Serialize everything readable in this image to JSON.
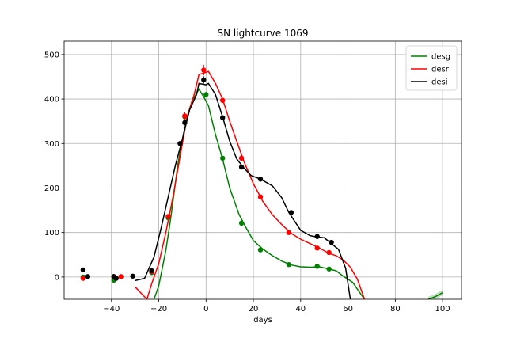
{
  "chart_data": {
    "type": "line",
    "title": "SN lightcurve 1069",
    "xlabel": "days",
    "ylabel": "",
    "xlim": [
      -60,
      108
    ],
    "ylim": [
      -50,
      530
    ],
    "xticks": [
      -40,
      -20,
      0,
      20,
      40,
      60,
      80,
      100
    ],
    "yticks": [
      0,
      100,
      200,
      300,
      400,
      500
    ],
    "grid": true,
    "legend_position": "top-right",
    "series": [
      {
        "name": "desg",
        "color": "#008000",
        "model": [
          [
            -22,
            -50
          ],
          [
            -20,
            -20
          ],
          [
            -17,
            60
          ],
          [
            -15,
            130
          ],
          [
            -12,
            250
          ],
          [
            -10,
            310
          ],
          [
            -8,
            360
          ],
          [
            -6,
            395
          ],
          [
            -3,
            422
          ],
          [
            -1,
            405
          ],
          [
            1,
            385
          ],
          [
            4,
            320
          ],
          [
            7,
            265
          ],
          [
            10,
            200
          ],
          [
            14,
            140
          ],
          [
            17,
            110
          ],
          [
            20,
            82
          ],
          [
            24,
            63
          ],
          [
            28,
            48
          ],
          [
            32,
            36
          ],
          [
            36,
            27
          ],
          [
            40,
            23
          ],
          [
            44,
            22
          ],
          [
            48,
            23
          ],
          [
            52,
            18
          ],
          [
            55,
            14
          ],
          [
            58,
            2
          ],
          [
            62,
            -12
          ],
          [
            65,
            -35
          ],
          [
            67,
            -50
          ]
        ],
        "model_tail": [
          [
            94,
            -50
          ],
          [
            97,
            -44
          ],
          [
            100,
            -35
          ]
        ],
        "points": [
          [
            -52,
            0
          ],
          [
            -39,
            -7
          ],
          [
            -23,
            10
          ],
          [
            -16,
            133
          ],
          [
            -9,
            360
          ],
          [
            0,
            410
          ],
          [
            7,
            267
          ],
          [
            15,
            121
          ],
          [
            23,
            61
          ],
          [
            35,
            28
          ],
          [
            47,
            24
          ],
          [
            52,
            18
          ]
        ],
        "errors": [
          3,
          3,
          3,
          5,
          10,
          6,
          4,
          4,
          3,
          3,
          3,
          3
        ]
      },
      {
        "name": "desr",
        "color": "#ff0000",
        "model": [
          [
            -30,
            -22
          ],
          [
            -25,
            -50
          ],
          [
            -23,
            -15
          ],
          [
            -20,
            30
          ],
          [
            -17,
            100
          ],
          [
            -14,
            180
          ],
          [
            -11,
            270
          ],
          [
            -8,
            360
          ],
          [
            -5,
            410
          ],
          [
            -3,
            455
          ],
          [
            0,
            460
          ],
          [
            1,
            462
          ],
          [
            4,
            435
          ],
          [
            7,
            400
          ],
          [
            10,
            350
          ],
          [
            13,
            305
          ],
          [
            16,
            260
          ],
          [
            20,
            210
          ],
          [
            24,
            170
          ],
          [
            28,
            140
          ],
          [
            32,
            118
          ],
          [
            36,
            98
          ],
          [
            40,
            85
          ],
          [
            44,
            75
          ],
          [
            48,
            65
          ],
          [
            52,
            53
          ],
          [
            55,
            48
          ],
          [
            58,
            38
          ],
          [
            61,
            22
          ],
          [
            64,
            -5
          ],
          [
            67,
            -50
          ]
        ],
        "points": [
          [
            -52,
            -3
          ],
          [
            -39,
            1
          ],
          [
            -36,
            1
          ],
          [
            -23,
            12
          ],
          [
            -16,
            136
          ],
          [
            -9,
            362
          ],
          [
            -1,
            465
          ],
          [
            7,
            397
          ],
          [
            15,
            267
          ],
          [
            23,
            180
          ],
          [
            35,
            100
          ],
          [
            47,
            65
          ],
          [
            52,
            55
          ]
        ],
        "errors": [
          3,
          3,
          3,
          3,
          5,
          8,
          12,
          6,
          5,
          4,
          3,
          3,
          3
        ]
      },
      {
        "name": "desi",
        "color": "#000000",
        "model": [
          [
            -30,
            -8
          ],
          [
            -26,
            -3
          ],
          [
            -22,
            45
          ],
          [
            -19,
            110
          ],
          [
            -16,
            180
          ],
          [
            -13,
            250
          ],
          [
            -10,
            310
          ],
          [
            -7,
            375
          ],
          [
            -4,
            410
          ],
          [
            -3,
            435
          ],
          [
            0,
            432
          ],
          [
            1,
            435
          ],
          [
            4,
            410
          ],
          [
            7,
            360
          ],
          [
            10,
            305
          ],
          [
            13,
            265
          ],
          [
            16,
            245
          ],
          [
            19,
            228
          ],
          [
            23,
            220
          ],
          [
            28,
            205
          ],
          [
            32,
            178
          ],
          [
            35,
            145
          ],
          [
            40,
            105
          ],
          [
            44,
            93
          ],
          [
            47,
            90
          ],
          [
            50,
            88
          ],
          [
            53,
            75
          ],
          [
            56,
            62
          ],
          [
            59,
            20
          ],
          [
            61,
            -50
          ]
        ],
        "points": [
          [
            -52,
            16
          ],
          [
            -50,
            1
          ],
          [
            -39,
            1
          ],
          [
            -38,
            -3
          ],
          [
            -31,
            2
          ],
          [
            -23,
            14
          ],
          [
            -11,
            300
          ],
          [
            -9,
            347
          ],
          [
            -1,
            443
          ],
          [
            7,
            358
          ],
          [
            15,
            247
          ],
          [
            23,
            220
          ],
          [
            36,
            145
          ],
          [
            47,
            91
          ],
          [
            53,
            78
          ]
        ],
        "errors": [
          3,
          3,
          3,
          3,
          3,
          3,
          5,
          6,
          8,
          5,
          4,
          4,
          4,
          3,
          3
        ]
      }
    ]
  }
}
